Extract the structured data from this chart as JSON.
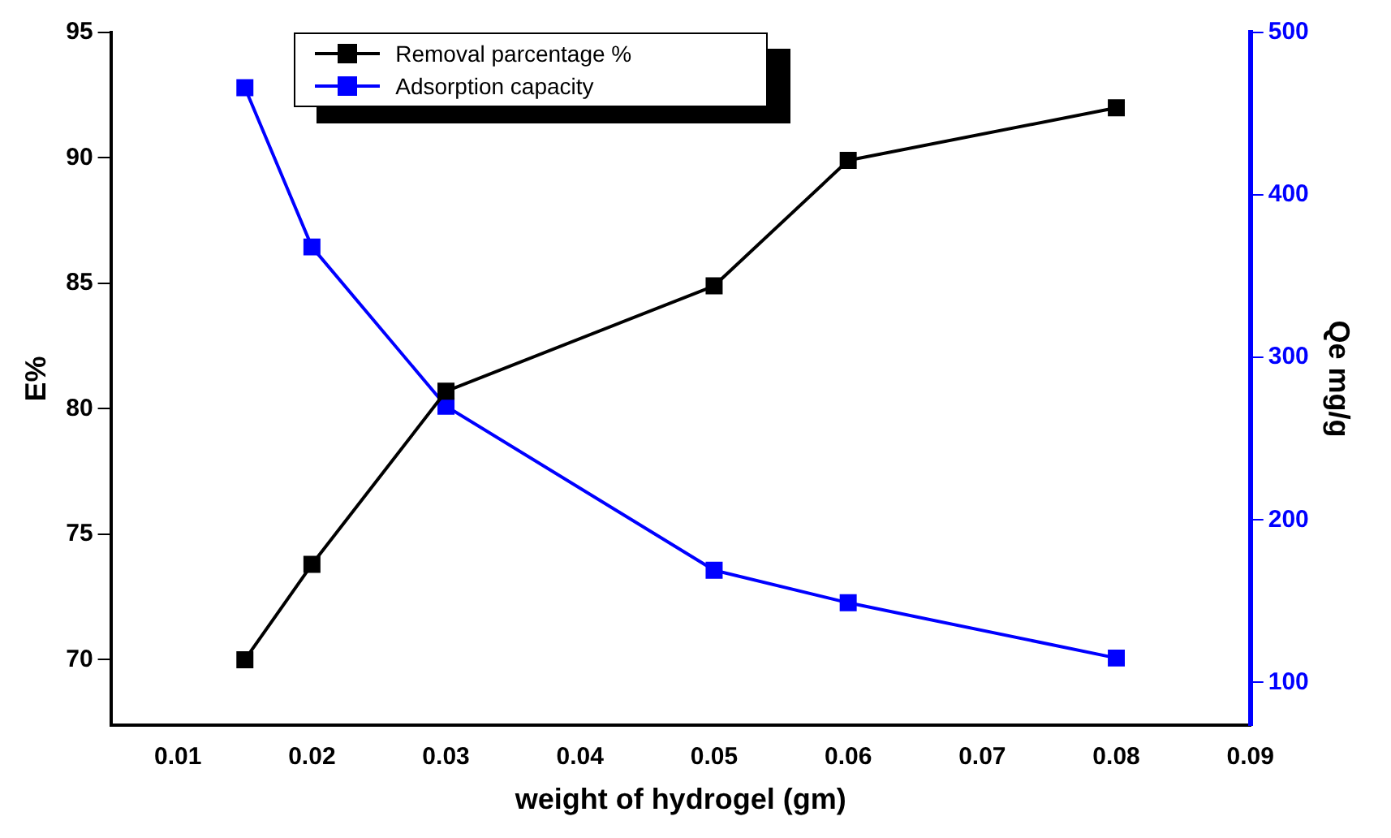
{
  "chart_data": {
    "type": "line",
    "xlabel": "weight of hydrogel (gm)",
    "ylabel": "E%",
    "y2label": "Qe mg/g",
    "x": [
      0.015,
      0.02,
      0.03,
      0.05,
      0.06,
      0.08
    ],
    "series": [
      {
        "name": "Removal parcentage %",
        "color": "#000000",
        "values": [
          70,
          73.8,
          80.7,
          84.9,
          89.9,
          92
        ]
      },
      {
        "name": "Adsorption capacity",
        "color": "#0000ff",
        "axis": "y2",
        "values": [
          466,
          368,
          270,
          169,
          149,
          115
        ]
      }
    ],
    "xlim": [
      0.005,
      0.09
    ],
    "xticks": [
      {
        "value": 0.01,
        "label": "0.01"
      },
      {
        "value": 0.02,
        "label": "0.02"
      },
      {
        "value": 0.03,
        "label": "0.03"
      },
      {
        "value": 0.04,
        "label": "0.04"
      },
      {
        "value": 0.05,
        "label": "0.05"
      },
      {
        "value": 0.06,
        "label": "0.06"
      },
      {
        "value": 0.07,
        "label": "0.07"
      },
      {
        "value": 0.08,
        "label": "0.08"
      },
      {
        "value": 0.09,
        "label": "0.09"
      }
    ],
    "ylim": [
      67.4,
      95
    ],
    "yticks": [
      70,
      75,
      80,
      85,
      90,
      95
    ],
    "y2lim": [
      73.8,
      500
    ],
    "y2ticks": [
      100,
      200,
      300,
      400,
      500
    ],
    "grid": false,
    "legend": "top",
    "marker": "square",
    "line_style": "solid"
  }
}
